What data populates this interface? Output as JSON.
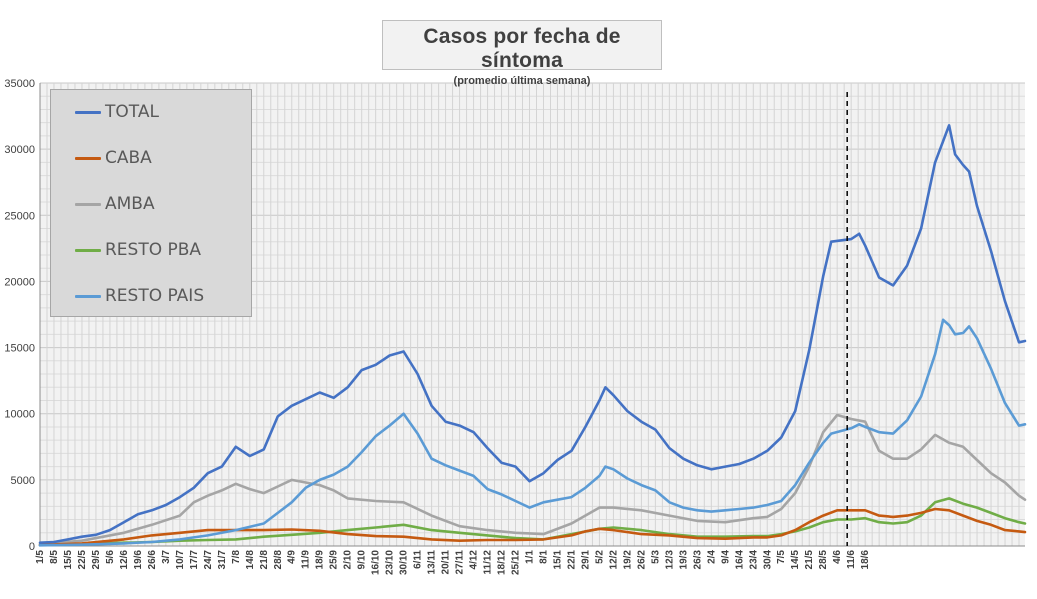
{
  "chart_data": {
    "type": "line",
    "title": "Casos por fecha de síntoma",
    "subtitle": "(promedio última semana)",
    "ylim": [
      0,
      35000
    ],
    "y_ticks": [
      "0",
      "5000",
      "10000",
      "15000",
      "20000",
      "25000",
      "30000",
      "35000"
    ],
    "x_tick_labels": [
      "1/5",
      "8/5",
      "15/5",
      "22/5",
      "29/5",
      "5/6",
      "12/6",
      "19/6",
      "26/6",
      "3/7",
      "10/7",
      "17/7",
      "24/7",
      "31/7",
      "7/8",
      "14/8",
      "21/8",
      "28/8",
      "4/9",
      "11/9",
      "18/9",
      "25/9",
      "2/10",
      "9/10",
      "16/10",
      "23/10",
      "30/10",
      "6/11",
      "13/11",
      "20/11",
      "27/11",
      "4/12",
      "11/12",
      "18/12",
      "25/12",
      "1/1",
      "8/1",
      "15/1",
      "22/1",
      "29/1",
      "5/2",
      "12/2",
      "19/2",
      "26/2",
      "5/3",
      "12/3",
      "19/3",
      "26/3",
      "2/4",
      "9/4",
      "16/4",
      "23/4",
      "30/4",
      "7/5",
      "14/5",
      "21/5",
      "28/5",
      "4/6",
      "11/6",
      "18/6"
    ],
    "x_unit": "days since 1/5",
    "grid": true,
    "legend_position": "top-left",
    "marker_day": 404,
    "series": [
      {
        "name": "TOTAL",
        "color": "#4472c4",
        "points": [
          [
            0,
            250
          ],
          [
            7,
            300
          ],
          [
            14,
            500
          ],
          [
            21,
            700
          ],
          [
            28,
            850
          ],
          [
            35,
            1200
          ],
          [
            42,
            1800
          ],
          [
            49,
            2400
          ],
          [
            56,
            2700
          ],
          [
            63,
            3100
          ],
          [
            70,
            3700
          ],
          [
            77,
            4400
          ],
          [
            84,
            5500
          ],
          [
            91,
            6000
          ],
          [
            98,
            7500
          ],
          [
            105,
            6800
          ],
          [
            112,
            7300
          ],
          [
            119,
            9800
          ],
          [
            126,
            10600
          ],
          [
            133,
            11100
          ],
          [
            140,
            11600
          ],
          [
            147,
            11200
          ],
          [
            154,
            12000
          ],
          [
            161,
            13300
          ],
          [
            168,
            13700
          ],
          [
            175,
            14400
          ],
          [
            182,
            14700
          ],
          [
            189,
            13000
          ],
          [
            196,
            10600
          ],
          [
            203,
            9400
          ],
          [
            210,
            9100
          ],
          [
            217,
            8600
          ],
          [
            224,
            7400
          ],
          [
            231,
            6300
          ],
          [
            238,
            6000
          ],
          [
            245,
            4900
          ],
          [
            252,
            5500
          ],
          [
            259,
            6500
          ],
          [
            266,
            7200
          ],
          [
            273,
            9000
          ],
          [
            280,
            11000
          ],
          [
            283,
            12000
          ],
          [
            287,
            11400
          ],
          [
            294,
            10200
          ],
          [
            301,
            9400
          ],
          [
            308,
            8800
          ],
          [
            315,
            7400
          ],
          [
            322,
            6600
          ],
          [
            329,
            6100
          ],
          [
            336,
            5800
          ],
          [
            343,
            6000
          ],
          [
            350,
            6200
          ],
          [
            357,
            6600
          ],
          [
            364,
            7200
          ],
          [
            371,
            8200
          ],
          [
            378,
            10200
          ],
          [
            385,
            14800
          ],
          [
            392,
            20400
          ],
          [
            396,
            23000
          ],
          [
            406,
            23200
          ],
          [
            410,
            23600
          ],
          [
            413,
            22700
          ],
          [
            420,
            20300
          ],
          [
            427,
            19700
          ],
          [
            434,
            21200
          ],
          [
            441,
            24000
          ],
          [
            448,
            29000
          ],
          [
            455,
            31800
          ],
          [
            458,
            29600
          ],
          [
            462,
            28800
          ],
          [
            465,
            28300
          ],
          [
            469,
            25700
          ],
          [
            476,
            22300
          ],
          [
            483,
            18500
          ],
          [
            490,
            15400
          ],
          [
            493,
            15500
          ]
        ]
      },
      {
        "name": "CABA",
        "color": "#c55a11",
        "points": [
          [
            0,
            80
          ],
          [
            21,
            200
          ],
          [
            42,
            500
          ],
          [
            56,
            800
          ],
          [
            70,
            1000
          ],
          [
            84,
            1200
          ],
          [
            98,
            1200
          ],
          [
            112,
            1200
          ],
          [
            126,
            1250
          ],
          [
            140,
            1150
          ],
          [
            154,
            900
          ],
          [
            168,
            750
          ],
          [
            182,
            700
          ],
          [
            196,
            500
          ],
          [
            210,
            400
          ],
          [
            224,
            450
          ],
          [
            238,
            450
          ],
          [
            252,
            500
          ],
          [
            266,
            800
          ],
          [
            273,
            1100
          ],
          [
            280,
            1300
          ],
          [
            287,
            1200
          ],
          [
            301,
            900
          ],
          [
            315,
            800
          ],
          [
            329,
            600
          ],
          [
            343,
            550
          ],
          [
            357,
            650
          ],
          [
            364,
            650
          ],
          [
            371,
            800
          ],
          [
            378,
            1200
          ],
          [
            385,
            1800
          ],
          [
            392,
            2300
          ],
          [
            399,
            2700
          ],
          [
            406,
            2700
          ],
          [
            413,
            2700
          ],
          [
            420,
            2300
          ],
          [
            427,
            2200
          ],
          [
            434,
            2300
          ],
          [
            441,
            2500
          ],
          [
            448,
            2800
          ],
          [
            455,
            2700
          ],
          [
            462,
            2300
          ],
          [
            469,
            1900
          ],
          [
            476,
            1600
          ],
          [
            483,
            1200
          ],
          [
            490,
            1100
          ],
          [
            493,
            1050
          ]
        ]
      },
      {
        "name": "AMBA",
        "color": "#a5a5a5",
        "points": [
          [
            0,
            150
          ],
          [
            21,
            400
          ],
          [
            42,
            1000
          ],
          [
            56,
            1600
          ],
          [
            70,
            2300
          ],
          [
            77,
            3300
          ],
          [
            84,
            3800
          ],
          [
            91,
            4200
          ],
          [
            98,
            4700
          ],
          [
            105,
            4300
          ],
          [
            112,
            4000
          ],
          [
            119,
            4500
          ],
          [
            126,
            5000
          ],
          [
            133,
            4800
          ],
          [
            140,
            4600
          ],
          [
            147,
            4200
          ],
          [
            154,
            3600
          ],
          [
            168,
            3400
          ],
          [
            182,
            3300
          ],
          [
            196,
            2300
          ],
          [
            210,
            1500
          ],
          [
            224,
            1200
          ],
          [
            238,
            1000
          ],
          [
            252,
            900
          ],
          [
            266,
            1700
          ],
          [
            280,
            2900
          ],
          [
            287,
            2900
          ],
          [
            301,
            2700
          ],
          [
            315,
            2300
          ],
          [
            329,
            1900
          ],
          [
            343,
            1800
          ],
          [
            357,
            2100
          ],
          [
            364,
            2200
          ],
          [
            371,
            2800
          ],
          [
            378,
            4000
          ],
          [
            385,
            6000
          ],
          [
            392,
            8600
          ],
          [
            399,
            9900
          ],
          [
            406,
            9600
          ],
          [
            413,
            9400
          ],
          [
            420,
            7200
          ],
          [
            427,
            6600
          ],
          [
            434,
            6600
          ],
          [
            441,
            7300
          ],
          [
            448,
            8400
          ],
          [
            455,
            7800
          ],
          [
            462,
            7500
          ],
          [
            469,
            6500
          ],
          [
            476,
            5500
          ],
          [
            483,
            4800
          ],
          [
            490,
            3800
          ],
          [
            493,
            3500
          ]
        ]
      },
      {
        "name": "RESTO PBA",
        "color": "#70ad47",
        "points": [
          [
            0,
            60
          ],
          [
            21,
            150
          ],
          [
            42,
            250
          ],
          [
            56,
            300
          ],
          [
            70,
            400
          ],
          [
            84,
            450
          ],
          [
            98,
            500
          ],
          [
            112,
            700
          ],
          [
            126,
            850
          ],
          [
            140,
            1000
          ],
          [
            154,
            1200
          ],
          [
            168,
            1400
          ],
          [
            182,
            1600
          ],
          [
            196,
            1200
          ],
          [
            210,
            1000
          ],
          [
            224,
            800
          ],
          [
            238,
            600
          ],
          [
            252,
            500
          ],
          [
            266,
            900
          ],
          [
            280,
            1300
          ],
          [
            287,
            1400
          ],
          [
            301,
            1200
          ],
          [
            315,
            900
          ],
          [
            329,
            700
          ],
          [
            343,
            700
          ],
          [
            357,
            750
          ],
          [
            364,
            750
          ],
          [
            371,
            900
          ],
          [
            378,
            1100
          ],
          [
            385,
            1400
          ],
          [
            392,
            1800
          ],
          [
            399,
            2000
          ],
          [
            406,
            2000
          ],
          [
            413,
            2100
          ],
          [
            420,
            1800
          ],
          [
            427,
            1700
          ],
          [
            434,
            1800
          ],
          [
            441,
            2300
          ],
          [
            448,
            3300
          ],
          [
            455,
            3600
          ],
          [
            462,
            3200
          ],
          [
            469,
            2900
          ],
          [
            476,
            2500
          ],
          [
            483,
            2100
          ],
          [
            490,
            1800
          ],
          [
            493,
            1700
          ]
        ]
      },
      {
        "name": "RESTO PAIS",
        "color": "#5b9bd5",
        "points": [
          [
            0,
            50
          ],
          [
            21,
            100
          ],
          [
            42,
            200
          ],
          [
            56,
            300
          ],
          [
            70,
            500
          ],
          [
            84,
            800
          ],
          [
            98,
            1200
          ],
          [
            112,
            1700
          ],
          [
            119,
            2500
          ],
          [
            126,
            3300
          ],
          [
            133,
            4400
          ],
          [
            140,
            5000
          ],
          [
            147,
            5400
          ],
          [
            154,
            6000
          ],
          [
            161,
            7100
          ],
          [
            168,
            8300
          ],
          [
            175,
            9100
          ],
          [
            182,
            10000
          ],
          [
            189,
            8500
          ],
          [
            196,
            6600
          ],
          [
            203,
            6100
          ],
          [
            210,
            5700
          ],
          [
            217,
            5300
          ],
          [
            224,
            4300
          ],
          [
            231,
            3900
          ],
          [
            238,
            3400
          ],
          [
            245,
            2900
          ],
          [
            252,
            3300
          ],
          [
            259,
            3500
          ],
          [
            266,
            3700
          ],
          [
            273,
            4400
          ],
          [
            280,
            5300
          ],
          [
            283,
            6000
          ],
          [
            287,
            5800
          ],
          [
            294,
            5100
          ],
          [
            301,
            4600
          ],
          [
            308,
            4200
          ],
          [
            315,
            3300
          ],
          [
            322,
            2900
          ],
          [
            329,
            2700
          ],
          [
            336,
            2600
          ],
          [
            343,
            2700
          ],
          [
            350,
            2800
          ],
          [
            357,
            2900
          ],
          [
            364,
            3100
          ],
          [
            371,
            3400
          ],
          [
            378,
            4600
          ],
          [
            385,
            6300
          ],
          [
            392,
            7800
          ],
          [
            396,
            8500
          ],
          [
            406,
            8900
          ],
          [
            410,
            9200
          ],
          [
            413,
            9000
          ],
          [
            420,
            8600
          ],
          [
            427,
            8500
          ],
          [
            434,
            9500
          ],
          [
            441,
            11300
          ],
          [
            448,
            14500
          ],
          [
            452,
            17100
          ],
          [
            455,
            16700
          ],
          [
            458,
            16000
          ],
          [
            462,
            16100
          ],
          [
            465,
            16600
          ],
          [
            469,
            15700
          ],
          [
            476,
            13400
          ],
          [
            483,
            10800
          ],
          [
            490,
            9100
          ],
          [
            493,
            9200
          ]
        ]
      }
    ]
  }
}
